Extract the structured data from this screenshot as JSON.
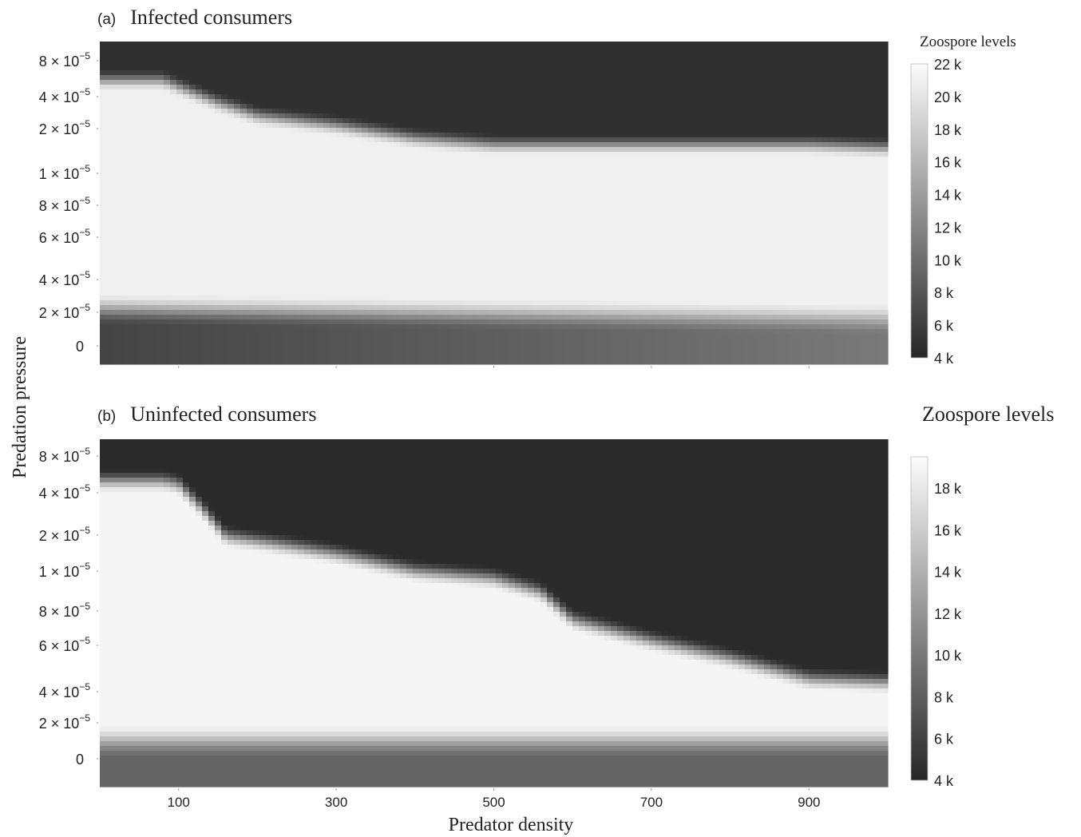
{
  "shared": {
    "ylabel": "Predation pressure",
    "xlabel": "Predator density"
  },
  "chart_data": [
    {
      "type": "heatmap",
      "panel_letter": "(a)",
      "title": "Infected consumers",
      "colorbar_title": "Zoospore levels",
      "xlabel": "",
      "ylabel": "Predation pressure",
      "x_ticks_labels": [
        "100",
        "300",
        "500",
        "700",
        "900"
      ],
      "x_tick_values": [
        100,
        300,
        500,
        700,
        900
      ],
      "show_x_tick_labels": false,
      "y_tick_labels": [
        {
          "mant": "8",
          "exp": "−5"
        },
        {
          "mant": "4",
          "exp": "−5"
        },
        {
          "mant": "2",
          "exp": "−5"
        },
        {
          "mant": "1",
          "exp": "−5"
        },
        {
          "mant": "8",
          "exp": "−5"
        },
        {
          "mant": "6",
          "exp": "−5"
        },
        {
          "mant": "4",
          "exp": "−5"
        },
        {
          "mant": "2",
          "exp": "−5"
        },
        {
          "plain": "0"
        }
      ],
      "xlim": [
        0,
        1000
      ],
      "colorbar": {
        "min": 4,
        "max": 22,
        "unit": "k",
        "tick_labels": [
          "22 k",
          "20 k",
          "18 k",
          "16 k",
          "14 k",
          "12 k",
          "10 k",
          "8 k",
          "6 k",
          "4 k"
        ],
        "tick_values": [
          22,
          20,
          18,
          16,
          14,
          12,
          10,
          8,
          6,
          4
        ]
      },
      "high_band_boundary": {
        "predator_density": [
          0,
          80,
          100,
          150,
          200,
          300,
          400,
          500,
          600,
          700,
          800,
          900,
          1000
        ],
        "y_fraction_from_top": [
          0.12,
          0.12,
          0.14,
          0.19,
          0.23,
          0.26,
          0.3,
          0.32,
          0.32,
          0.32,
          0.32,
          0.32,
          0.33
        ]
      },
      "low_band_boundary": {
        "predator_density": [
          0,
          1000
        ],
        "y_fraction_from_top": [
          0.83,
          0.86
        ]
      },
      "value_above_band": 4.8,
      "value_in_band": 21.0,
      "value_below_band_start": 6.5,
      "value_below_band_end": 11.0
    },
    {
      "type": "heatmap",
      "panel_letter": "(b)",
      "title": "Uninfected consumers",
      "colorbar_title": "Zoospore levels",
      "xlabel": "Predator density",
      "ylabel": "Predation pressure",
      "x_ticks_labels": [
        "100",
        "300",
        "500",
        "700",
        "900"
      ],
      "x_tick_values": [
        100,
        300,
        500,
        700,
        900
      ],
      "show_x_tick_labels": true,
      "y_tick_labels": [
        {
          "mant": "8",
          "exp": "−5"
        },
        {
          "mant": "4",
          "exp": "−5"
        },
        {
          "mant": "2",
          "exp": "−5"
        },
        {
          "mant": "1",
          "exp": "−5"
        },
        {
          "mant": "8",
          "exp": "−5"
        },
        {
          "mant": "6",
          "exp": "−5"
        },
        {
          "mant": "4",
          "exp": "−5"
        },
        {
          "mant": "2",
          "exp": "−5"
        },
        {
          "plain": "0"
        }
      ],
      "xlim": [
        0,
        1000
      ],
      "colorbar": {
        "min": 4,
        "max": 19.5,
        "unit": "k",
        "tick_labels": [
          "18 k",
          "16 k",
          "14 k",
          "12 k",
          "10 k",
          "8 k",
          "6 k",
          "4 k"
        ],
        "tick_values": [
          18,
          16,
          14,
          12,
          10,
          8,
          6,
          4
        ]
      },
      "high_band_boundary": {
        "predator_density": [
          0,
          80,
          100,
          130,
          160,
          220,
          300,
          400,
          500,
          560,
          600,
          700,
          800,
          900,
          1000
        ],
        "y_fraction_from_top": [
          0.12,
          0.12,
          0.13,
          0.2,
          0.28,
          0.3,
          0.33,
          0.38,
          0.4,
          0.44,
          0.52,
          0.58,
          0.63,
          0.69,
          0.7
        ]
      },
      "low_band_boundary": {
        "predator_density": [
          0,
          1000
        ],
        "y_fraction_from_top": [
          0.87,
          0.87
        ]
      },
      "value_above_band": 4.3,
      "value_in_band": 19.0,
      "value_below_band_start": 8.5,
      "value_below_band_end": 8.5
    }
  ]
}
